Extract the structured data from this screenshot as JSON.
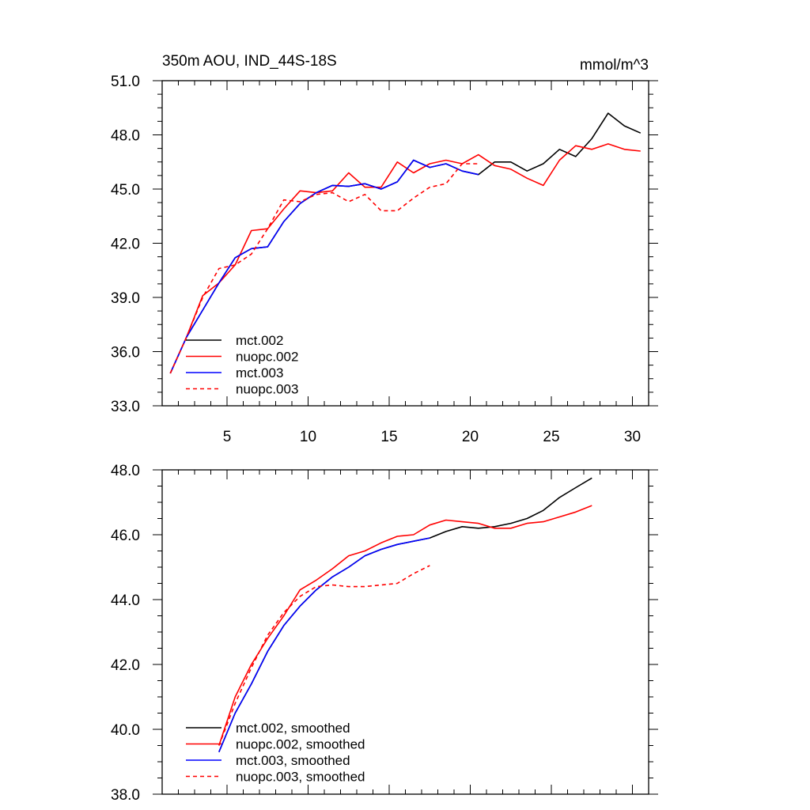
{
  "chart_data": [
    {
      "type": "line",
      "title": "350m AOU, IND_44S-18S",
      "units": "mmol/m^3",
      "xlim": [
        1,
        31
      ],
      "ylim": [
        33.0,
        51.0
      ],
      "xticks": [
        5,
        10,
        15,
        20,
        25,
        30
      ],
      "xtick_labels": [
        "5",
        "10",
        "15",
        "20",
        "25",
        "30"
      ],
      "yticks": [
        33.0,
        36.0,
        39.0,
        42.0,
        45.0,
        48.0,
        51.0
      ],
      "ytick_labels": [
        "33.0",
        "36.0",
        "39.0",
        "42.0",
        "45.0",
        "48.0",
        "51.0"
      ],
      "grid": false,
      "legend_position": "bottom-left",
      "series": [
        {
          "name": "mct.002",
          "color": "#000000",
          "dash": "solid",
          "x": [
            1.5,
            2.5,
            3.5,
            4.5,
            5.5,
            6.5,
            7.5,
            8.5,
            9.5,
            10.5,
            11.5,
            12.5,
            13.5,
            14.5,
            15.5,
            16.5,
            17.5,
            18.5,
            19.5,
            20.5,
            21.5,
            22.5,
            23.5,
            24.5,
            25.5,
            26.5,
            27.5,
            28.5,
            29.5,
            30.5
          ],
          "values": [
            34.8,
            36.8,
            38.3,
            39.8,
            41.2,
            41.7,
            41.8,
            43.2,
            44.2,
            44.8,
            45.2,
            45.15,
            45.3,
            45.0,
            45.4,
            46.6,
            46.2,
            46.4,
            46.0,
            45.8,
            46.5,
            46.5,
            46.0,
            46.4,
            47.2,
            46.8,
            47.8,
            49.2,
            48.5,
            48.1
          ]
        },
        {
          "name": "nuopc.002",
          "color": "#ff0000",
          "dash": "solid",
          "x": [
            1.5,
            2.5,
            3.5,
            4.5,
            5.5,
            6.5,
            7.5,
            8.5,
            9.5,
            10.5,
            11.5,
            12.5,
            13.5,
            14.5,
            15.5,
            16.5,
            17.5,
            18.5,
            19.5,
            20.5,
            21.5,
            22.5,
            23.5,
            24.5,
            25.5,
            26.5,
            27.5,
            28.5,
            29.5,
            30.5
          ],
          "values": [
            34.8,
            36.8,
            39.1,
            39.8,
            40.8,
            42.7,
            42.8,
            43.9,
            44.9,
            44.8,
            44.9,
            45.9,
            45.1,
            45.1,
            46.5,
            45.9,
            46.4,
            46.6,
            46.4,
            46.9,
            46.3,
            46.1,
            45.6,
            45.2,
            46.6,
            47.4,
            47.2,
            47.5,
            47.2,
            47.1
          ]
        },
        {
          "name": "mct.003",
          "color": "#0000ff",
          "dash": "solid",
          "x": [
            1.5,
            2.5,
            3.5,
            4.5,
            5.5,
            6.5,
            7.5,
            8.5,
            9.5,
            10.5,
            11.5,
            12.5,
            13.5,
            14.5,
            15.5,
            16.5,
            17.5,
            18.5,
            19.5,
            20.5
          ],
          "values": [
            34.8,
            36.8,
            38.3,
            39.8,
            41.2,
            41.7,
            41.8,
            43.2,
            44.2,
            44.8,
            45.2,
            45.15,
            45.3,
            45.0,
            45.4,
            46.6,
            46.2,
            46.4,
            46.0,
            45.8
          ]
        },
        {
          "name": "nuopc.003",
          "color": "#ff0000",
          "dash": "dashed",
          "x": [
            1.5,
            2.5,
            3.5,
            4.5,
            5.5,
            6.5,
            7.5,
            8.5,
            9.5,
            10.5,
            11.5,
            12.5,
            13.5,
            14.5,
            15.5,
            16.5,
            17.5,
            18.5,
            19.5,
            20.5
          ],
          "values": [
            34.8,
            36.8,
            39.0,
            40.6,
            40.8,
            41.4,
            42.8,
            44.4,
            44.3,
            44.7,
            44.8,
            44.3,
            44.7,
            43.8,
            43.8,
            44.5,
            45.1,
            45.3,
            46.4,
            46.4
          ]
        }
      ]
    },
    {
      "type": "line",
      "xlim": [
        1,
        31
      ],
      "ylim": [
        38.0,
        48.0
      ],
      "xticks": [
        5,
        10,
        15,
        20,
        25,
        30
      ],
      "yticks": [
        38.0,
        40.0,
        42.0,
        44.0,
        46.0,
        48.0
      ],
      "ytick_labels": [
        "38.0",
        "40.0",
        "42.0",
        "44.0",
        "46.0",
        "48.0"
      ],
      "grid": false,
      "legend_position": "bottom-left",
      "series": [
        {
          "name": "mct.002, smoothed",
          "color": "#000000",
          "dash": "solid",
          "x": [
            4.5,
            5.5,
            6.5,
            7.5,
            8.5,
            9.5,
            10.5,
            11.5,
            12.5,
            13.5,
            14.5,
            15.5,
            16.5,
            17.5,
            18.5,
            19.5,
            20.5,
            21.5,
            22.5,
            23.5,
            24.5,
            25.5,
            26.5,
            27.5
          ],
          "values": [
            39.3,
            40.5,
            41.4,
            42.4,
            43.2,
            43.8,
            44.3,
            44.7,
            45.0,
            45.35,
            45.55,
            45.7,
            45.8,
            45.9,
            46.1,
            46.25,
            46.2,
            46.25,
            46.35,
            46.5,
            46.75,
            47.15,
            47.45,
            47.75
          ]
        },
        {
          "name": "nuopc.002, smoothed",
          "color": "#ff0000",
          "dash": "solid",
          "x": [
            4.5,
            5.5,
            6.5,
            7.5,
            8.5,
            9.5,
            10.5,
            11.5,
            12.5,
            13.5,
            14.5,
            15.5,
            16.5,
            17.5,
            18.5,
            19.5,
            20.5,
            21.5,
            22.5,
            23.5,
            24.5,
            25.5,
            26.5,
            27.5
          ],
          "values": [
            39.5,
            41.0,
            42.0,
            42.8,
            43.5,
            44.3,
            44.6,
            44.95,
            45.35,
            45.5,
            45.75,
            45.95,
            46.0,
            46.3,
            46.45,
            46.4,
            46.35,
            46.2,
            46.2,
            46.35,
            46.4,
            46.55,
            46.7,
            46.9
          ]
        },
        {
          "name": "mct.003, smoothed",
          "color": "#0000ff",
          "dash": "solid",
          "x": [
            4.5,
            5.5,
            6.5,
            7.5,
            8.5,
            9.5,
            10.5,
            11.5,
            12.5,
            13.5,
            14.5,
            15.5,
            16.5,
            17.5
          ],
          "values": [
            39.3,
            40.5,
            41.4,
            42.4,
            43.2,
            43.8,
            44.3,
            44.7,
            45.0,
            45.35,
            45.55,
            45.7,
            45.8,
            45.9
          ]
        },
        {
          "name": "nuopc.003, smoothed",
          "color": "#ff0000",
          "dash": "dashed",
          "x": [
            4.5,
            5.5,
            6.5,
            7.5,
            8.5,
            9.5,
            10.5,
            11.5,
            12.5,
            13.5,
            14.5,
            15.5,
            16.5,
            17.5
          ],
          "values": [
            39.5,
            40.8,
            41.9,
            42.9,
            43.6,
            44.1,
            44.4,
            44.45,
            44.4,
            44.4,
            44.45,
            44.5,
            44.8,
            45.05
          ]
        }
      ]
    }
  ]
}
